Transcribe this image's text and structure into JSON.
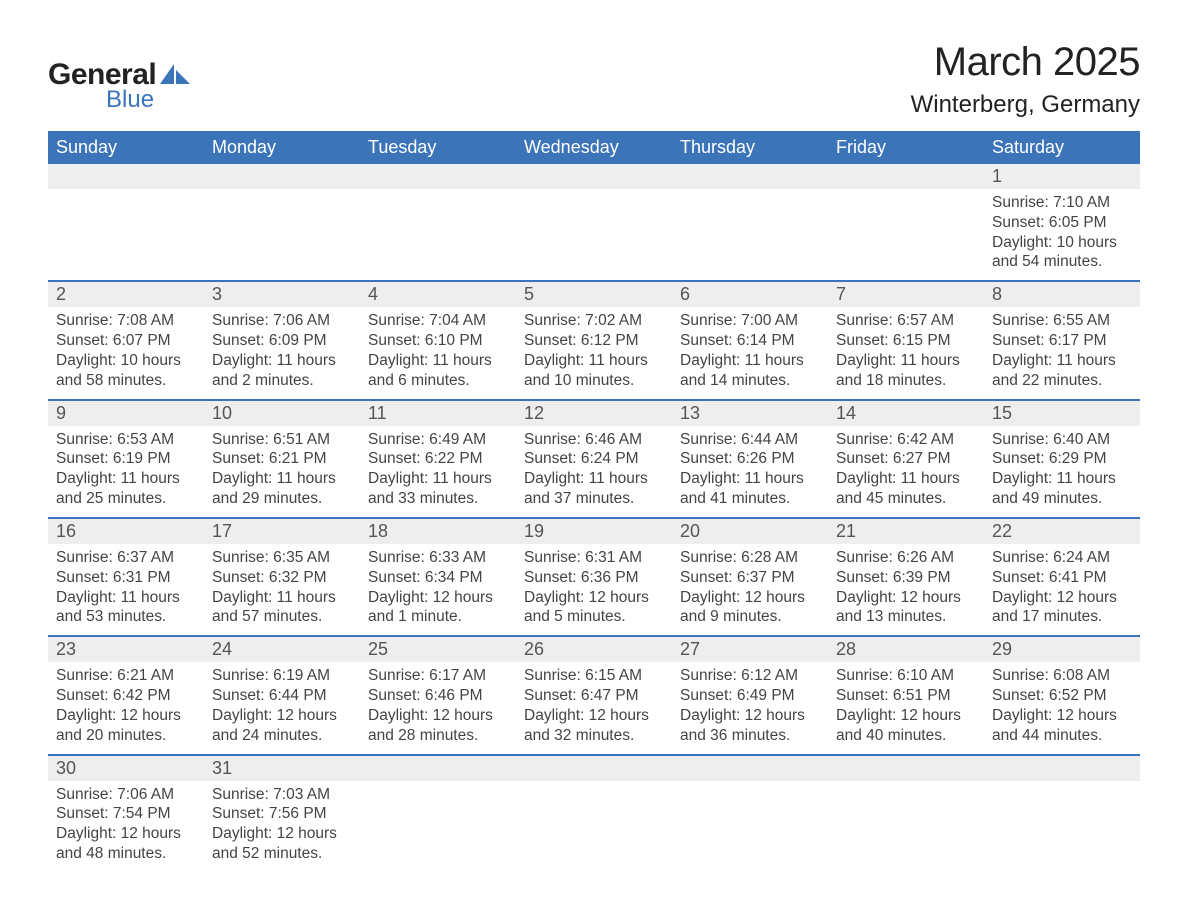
{
  "logo": {
    "text1": "General",
    "text2": "Blue",
    "shape_color": "#3b74b9"
  },
  "title": "March 2025",
  "subtitle": "Winterberg, Germany",
  "colors": {
    "header_bg": "#3b74b9",
    "header_fg": "#ffffff",
    "daynum_bg": "#eeeeee",
    "row_border": "#3b74b9",
    "text": "#444444",
    "page_bg": "#ffffff"
  },
  "typography": {
    "title_fontsize": 40,
    "subtitle_fontsize": 24,
    "header_fontsize": 18,
    "daynum_fontsize": 18,
    "detail_fontsize": 15.5,
    "font_family": "Arial"
  },
  "day_headers": [
    "Sunday",
    "Monday",
    "Tuesday",
    "Wednesday",
    "Thursday",
    "Friday",
    "Saturday"
  ],
  "labels": {
    "sunrise": "Sunrise: ",
    "sunset": "Sunset: ",
    "daylight": "Daylight: "
  },
  "weeks": [
    [
      null,
      null,
      null,
      null,
      null,
      null,
      {
        "n": "1",
        "sr": "7:10 AM",
        "ss": "6:05 PM",
        "dl": "10 hours and 54 minutes."
      }
    ],
    [
      {
        "n": "2",
        "sr": "7:08 AM",
        "ss": "6:07 PM",
        "dl": "10 hours and 58 minutes."
      },
      {
        "n": "3",
        "sr": "7:06 AM",
        "ss": "6:09 PM",
        "dl": "11 hours and 2 minutes."
      },
      {
        "n": "4",
        "sr": "7:04 AM",
        "ss": "6:10 PM",
        "dl": "11 hours and 6 minutes."
      },
      {
        "n": "5",
        "sr": "7:02 AM",
        "ss": "6:12 PM",
        "dl": "11 hours and 10 minutes."
      },
      {
        "n": "6",
        "sr": "7:00 AM",
        "ss": "6:14 PM",
        "dl": "11 hours and 14 minutes."
      },
      {
        "n": "7",
        "sr": "6:57 AM",
        "ss": "6:15 PM",
        "dl": "11 hours and 18 minutes."
      },
      {
        "n": "8",
        "sr": "6:55 AM",
        "ss": "6:17 PM",
        "dl": "11 hours and 22 minutes."
      }
    ],
    [
      {
        "n": "9",
        "sr": "6:53 AM",
        "ss": "6:19 PM",
        "dl": "11 hours and 25 minutes."
      },
      {
        "n": "10",
        "sr": "6:51 AM",
        "ss": "6:21 PM",
        "dl": "11 hours and 29 minutes."
      },
      {
        "n": "11",
        "sr": "6:49 AM",
        "ss": "6:22 PM",
        "dl": "11 hours and 33 minutes."
      },
      {
        "n": "12",
        "sr": "6:46 AM",
        "ss": "6:24 PM",
        "dl": "11 hours and 37 minutes."
      },
      {
        "n": "13",
        "sr": "6:44 AM",
        "ss": "6:26 PM",
        "dl": "11 hours and 41 minutes."
      },
      {
        "n": "14",
        "sr": "6:42 AM",
        "ss": "6:27 PM",
        "dl": "11 hours and 45 minutes."
      },
      {
        "n": "15",
        "sr": "6:40 AM",
        "ss": "6:29 PM",
        "dl": "11 hours and 49 minutes."
      }
    ],
    [
      {
        "n": "16",
        "sr": "6:37 AM",
        "ss": "6:31 PM",
        "dl": "11 hours and 53 minutes."
      },
      {
        "n": "17",
        "sr": "6:35 AM",
        "ss": "6:32 PM",
        "dl": "11 hours and 57 minutes."
      },
      {
        "n": "18",
        "sr": "6:33 AM",
        "ss": "6:34 PM",
        "dl": "12 hours and 1 minute."
      },
      {
        "n": "19",
        "sr": "6:31 AM",
        "ss": "6:36 PM",
        "dl": "12 hours and 5 minutes."
      },
      {
        "n": "20",
        "sr": "6:28 AM",
        "ss": "6:37 PM",
        "dl": "12 hours and 9 minutes."
      },
      {
        "n": "21",
        "sr": "6:26 AM",
        "ss": "6:39 PM",
        "dl": "12 hours and 13 minutes."
      },
      {
        "n": "22",
        "sr": "6:24 AM",
        "ss": "6:41 PM",
        "dl": "12 hours and 17 minutes."
      }
    ],
    [
      {
        "n": "23",
        "sr": "6:21 AM",
        "ss": "6:42 PM",
        "dl": "12 hours and 20 minutes."
      },
      {
        "n": "24",
        "sr": "6:19 AM",
        "ss": "6:44 PM",
        "dl": "12 hours and 24 minutes."
      },
      {
        "n": "25",
        "sr": "6:17 AM",
        "ss": "6:46 PM",
        "dl": "12 hours and 28 minutes."
      },
      {
        "n": "26",
        "sr": "6:15 AM",
        "ss": "6:47 PM",
        "dl": "12 hours and 32 minutes."
      },
      {
        "n": "27",
        "sr": "6:12 AM",
        "ss": "6:49 PM",
        "dl": "12 hours and 36 minutes."
      },
      {
        "n": "28",
        "sr": "6:10 AM",
        "ss": "6:51 PM",
        "dl": "12 hours and 40 minutes."
      },
      {
        "n": "29",
        "sr": "6:08 AM",
        "ss": "6:52 PM",
        "dl": "12 hours and 44 minutes."
      }
    ],
    [
      {
        "n": "30",
        "sr": "7:06 AM",
        "ss": "7:54 PM",
        "dl": "12 hours and 48 minutes."
      },
      {
        "n": "31",
        "sr": "7:03 AM",
        "ss": "7:56 PM",
        "dl": "12 hours and 52 minutes."
      },
      null,
      null,
      null,
      null,
      null
    ]
  ]
}
